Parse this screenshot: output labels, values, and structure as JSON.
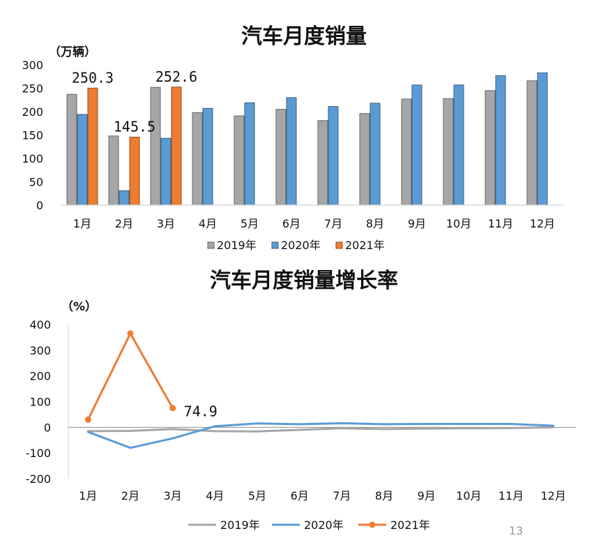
{
  "page_number": "13",
  "chart_data": [
    {
      "type": "bar",
      "title": "汽车月度销量",
      "unit_label": "（万辆）",
      "categories": [
        "1月",
        "2月",
        "3月",
        "4月",
        "5月",
        "6月",
        "7月",
        "8月",
        "9月",
        "10月",
        "11月",
        "12月"
      ],
      "ylim": [
        0,
        300
      ],
      "yticks": [
        0,
        50,
        100,
        150,
        200,
        250,
        300
      ],
      "grid": false,
      "legend_placement": "bottom",
      "series": [
        {
          "name": "2019年",
          "color": "#a6a6a6",
          "values": [
            237,
            148,
            252,
            198,
            191,
            205,
            181,
            196,
            227,
            228,
            245,
            266
          ]
        },
        {
          "name": "2020年",
          "color": "#5b9bd5",
          "values": [
            194,
            31,
            143,
            207,
            219,
            230,
            211,
            218,
            257,
            257,
            277,
            283
          ]
        },
        {
          "name": "2021年",
          "color": "#ed7d31",
          "values": [
            250.3,
            145.5,
            252.6,
            null,
            null,
            null,
            null,
            null,
            null,
            null,
            null,
            null
          ]
        }
      ],
      "data_labels": [
        {
          "series": 2,
          "index": 0,
          "text": "250.3"
        },
        {
          "series": 2,
          "index": 1,
          "text": "145.5"
        },
        {
          "series": 2,
          "index": 2,
          "text": "252.6"
        }
      ]
    },
    {
      "type": "line",
      "title": "汽车月度销量增长率",
      "unit_label": "（%）",
      "categories": [
        "1月",
        "2月",
        "3月",
        "4月",
        "5月",
        "6月",
        "7月",
        "8月",
        "9月",
        "10月",
        "11月",
        "12月"
      ],
      "ylim": [
        -200,
        400
      ],
      "yticks": [
        -200,
        -100,
        0,
        100,
        200,
        300,
        400
      ],
      "grid": false,
      "legend_placement": "bottom",
      "series": [
        {
          "name": "2019年",
          "color": "#a6a6a6",
          "values": [
            -15,
            -14,
            -7,
            -15,
            -16,
            -10,
            -4,
            -7,
            -5,
            -4,
            -3,
            0
          ]
        },
        {
          "name": "2020年",
          "color": "#5b9bd5",
          "values": [
            -18,
            -80,
            -43,
            4,
            15,
            12,
            16,
            12,
            13,
            13,
            13,
            6
          ]
        },
        {
          "name": "2021年",
          "color": "#ed7d31",
          "markers": true,
          "values": [
            30,
            365,
            74.9,
            null,
            null,
            null,
            null,
            null,
            null,
            null,
            null,
            null
          ]
        }
      ],
      "data_labels": [
        {
          "series": 2,
          "index": 2,
          "text": "74.9"
        }
      ]
    }
  ]
}
